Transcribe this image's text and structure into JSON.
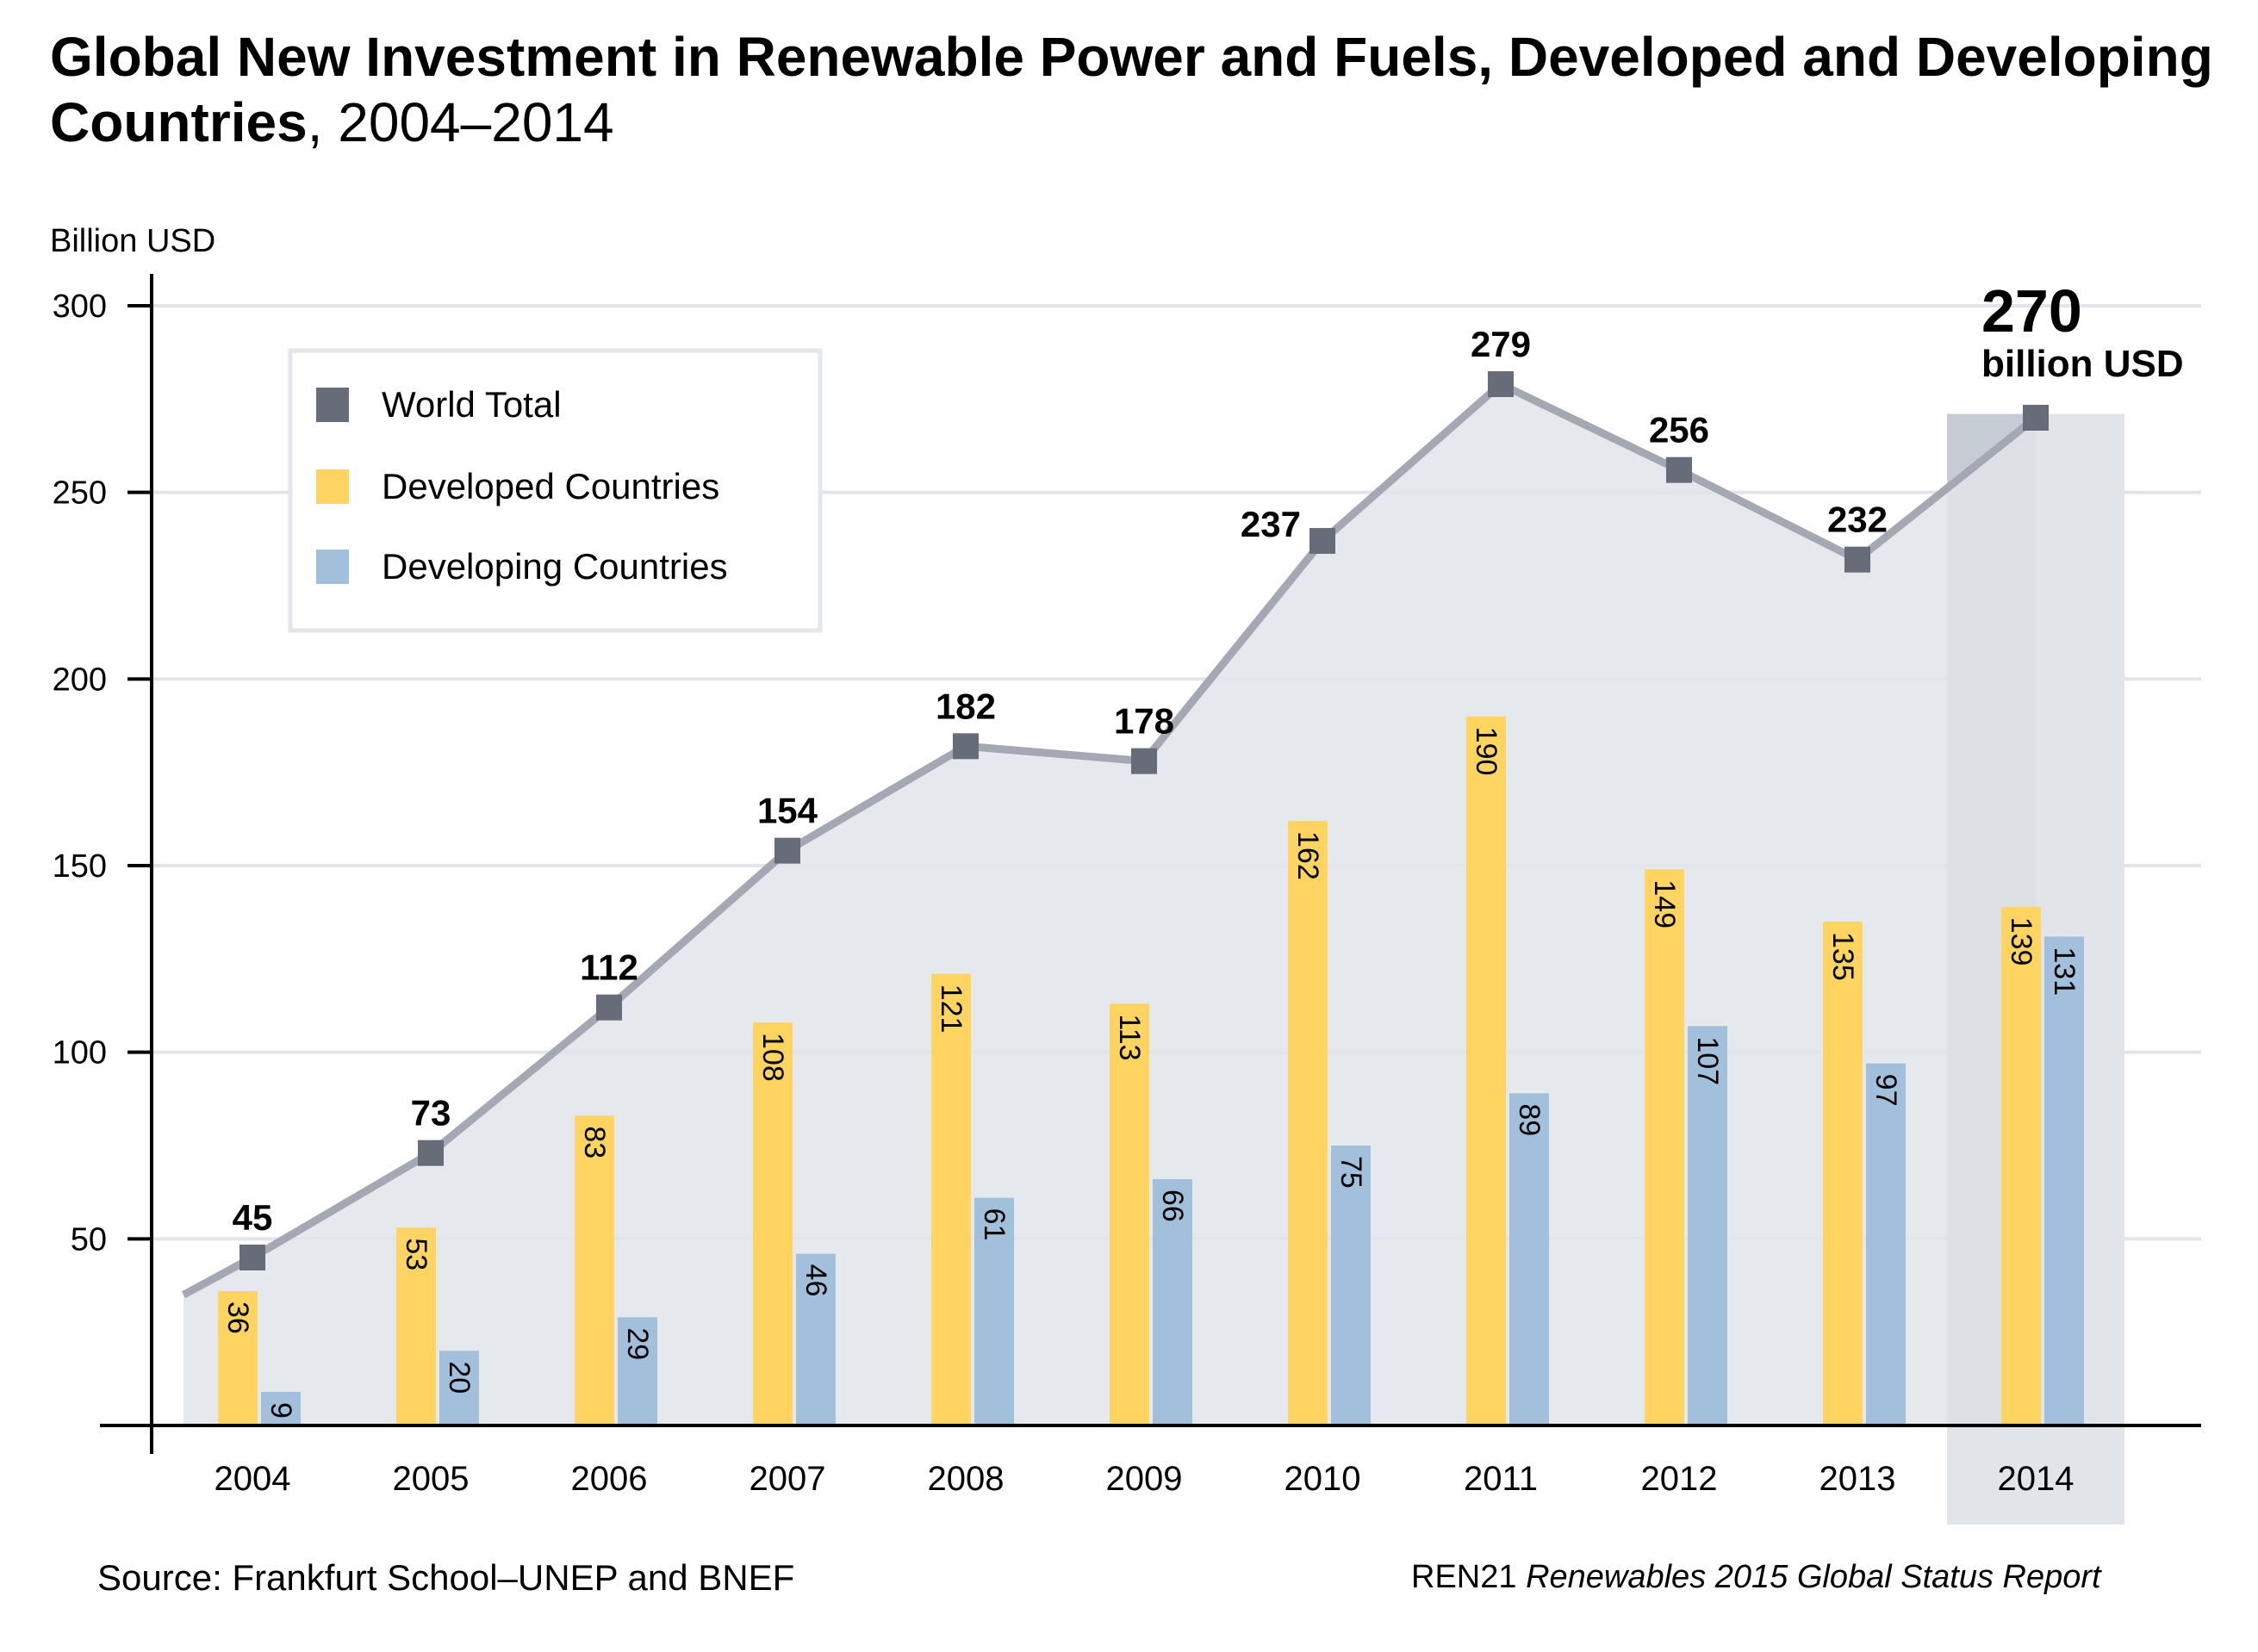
{
  "title": {
    "bold": "Global New Investment in Renewable Power and Fuels, Developed and Developing Countries",
    "years": "2004–2014"
  },
  "source": "Source: Frankfurt School–UNEP and BNEF",
  "report": {
    "org": "REN21",
    "title": "Renewables 2015 Global Status Report"
  },
  "chart_data": {
    "type": "bar",
    "ylabel": "Billion USD",
    "ylim": [
      0,
      300
    ],
    "yticks": [
      50,
      100,
      150,
      200,
      250,
      300
    ],
    "grid": true,
    "legend_position": "top-left",
    "categories": [
      "2004",
      "2005",
      "2006",
      "2007",
      "2008",
      "2009",
      "2010",
      "2011",
      "2012",
      "2013",
      "2014"
    ],
    "series": [
      {
        "name": "World Total",
        "type": "line",
        "color": "#666d78",
        "line_color": "#a3a8b2",
        "fill_color": "#e0e4e9",
        "values": [
          45,
          73,
          112,
          154,
          182,
          178,
          237,
          279,
          256,
          232,
          270
        ]
      },
      {
        "name": "Developed Countries",
        "type": "bar",
        "color": "#ffd460",
        "values": [
          36,
          53,
          83,
          108,
          121,
          113,
          162,
          190,
          149,
          135,
          139
        ]
      },
      {
        "name": "Developing Countries",
        "type": "bar",
        "color": "#a2bfdb",
        "values": [
          9,
          20,
          29,
          46,
          61,
          66,
          75,
          89,
          107,
          97,
          131
        ]
      }
    ],
    "highlight": {
      "category": "2014",
      "value_label": "270",
      "unit_label": "billion USD",
      "color": "#c5ccd3"
    }
  }
}
